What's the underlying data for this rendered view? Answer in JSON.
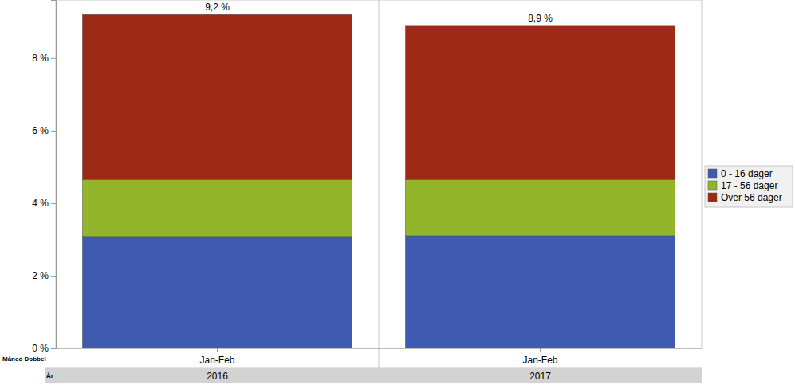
{
  "chart_data": {
    "type": "bar",
    "stacked": true,
    "grid": false,
    "legend": "right",
    "categories": [
      "Jan-Feb",
      "Jan-Feb"
    ],
    "groups": [
      "2016",
      "2017"
    ],
    "x_label_rows": [
      "Måned Dobbel",
      "År"
    ],
    "series": [
      {
        "name": "0 - 16 dager",
        "color": "#3f5aae",
        "values": [
          3.08,
          3.1
        ]
      },
      {
        "name": "17 - 56 dager",
        "color": "#93b52b",
        "values": [
          1.57,
          1.55
        ]
      },
      {
        "name": "Over 56 dager",
        "color": "#9c2a14",
        "values": [
          4.55,
          4.25
        ]
      }
    ],
    "totals": [
      9.2,
      8.9
    ],
    "total_labels": [
      "9,2 %",
      "8,9 %"
    ],
    "ylim": [
      0,
      9.6
    ],
    "yticks": [
      {
        "value": 0,
        "label": "0 %"
      },
      {
        "value": 2,
        "label": "2 %"
      },
      {
        "value": 4,
        "label": "4 %"
      },
      {
        "value": 6,
        "label": "6 %"
      },
      {
        "value": 8,
        "label": "8 %"
      }
    ]
  }
}
